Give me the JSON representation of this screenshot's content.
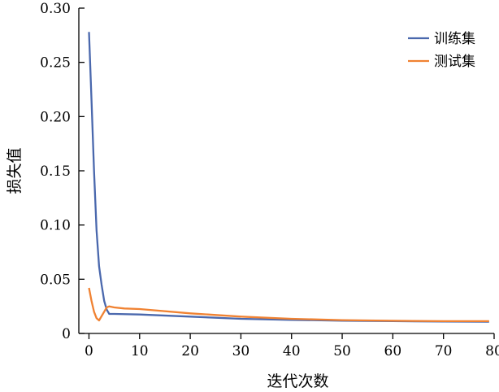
{
  "chart_data": {
    "type": "line",
    "xlabel": "迭代次数",
    "ylabel": "损失值",
    "xlim": [
      -2,
      80
    ],
    "ylim": [
      0,
      0.3
    ],
    "xticks": [
      0,
      10,
      20,
      30,
      40,
      50,
      60,
      70,
      80
    ],
    "yticks": [
      0,
      0.05,
      0.1,
      0.15,
      0.2,
      0.25,
      0.3
    ],
    "ytick_labels": [
      "0",
      "0.05",
      "0.10",
      "0.15",
      "0.20",
      "0.25",
      "0.30"
    ],
    "grid": false,
    "legend_position": "top-right",
    "series": [
      {
        "name": "训练集",
        "color": "#4a68ad",
        "x": [
          0,
          0.5,
          1,
          1.5,
          2,
          2.5,
          3,
          3.5,
          4,
          5,
          10,
          20,
          30,
          40,
          50,
          60,
          70,
          79
        ],
        "y": [
          0.278,
          0.215,
          0.15,
          0.095,
          0.062,
          0.045,
          0.03,
          0.022,
          0.018,
          0.018,
          0.0175,
          0.0155,
          0.0135,
          0.0125,
          0.0118,
          0.0113,
          0.011,
          0.0108
        ]
      },
      {
        "name": "测试集",
        "color": "#f08232",
        "x": [
          0,
          0.5,
          1,
          1.5,
          2,
          3,
          3.5,
          4,
          5,
          7,
          10,
          20,
          30,
          40,
          50,
          60,
          70,
          79
        ],
        "y": [
          0.042,
          0.03,
          0.02,
          0.014,
          0.012,
          0.02,
          0.024,
          0.025,
          0.024,
          0.023,
          0.0225,
          0.0185,
          0.0155,
          0.0135,
          0.0123,
          0.0117,
          0.0113,
          0.0113
        ]
      }
    ]
  }
}
